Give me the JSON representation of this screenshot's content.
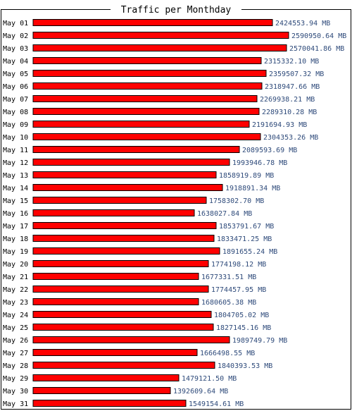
{
  "chart_data": {
    "type": "bar",
    "orientation": "horizontal",
    "title": "Traffic per Monthday",
    "unit": "MB",
    "colors": {
      "bar": "#ff0000",
      "bar_outline": "#000000",
      "value_text": "#2e4a7a",
      "frame": "#000000"
    },
    "categories": [
      "May 01",
      "May 02",
      "May 03",
      "May 04",
      "May 05",
      "May 06",
      "May 07",
      "May 08",
      "May 09",
      "May 10",
      "May 11",
      "May 12",
      "May 13",
      "May 14",
      "May 15",
      "May 16",
      "May 17",
      "May 18",
      "May 19",
      "May 20",
      "May 21",
      "May 22",
      "May 23",
      "May 24",
      "May 25",
      "May 26",
      "May 27",
      "May 28",
      "May 29",
      "May 30",
      "May 31"
    ],
    "values": [
      2424553.94,
      2590950.64,
      2570041.86,
      2315332.1,
      2359507.32,
      2318947.66,
      2269938.21,
      2289310.28,
      2191694.93,
      2304353.26,
      2089593.69,
      1993946.78,
      1858919.89,
      1918891.34,
      1758302.7,
      1638027.84,
      1853791.67,
      1833471.25,
      1891655.24,
      1774198.12,
      1677331.51,
      1774457.95,
      1680605.38,
      1804705.02,
      1827145.16,
      1989749.79,
      1666498.55,
      1840393.53,
      1479121.5,
      1392609.64,
      1549154.61
    ],
    "value_labels": [
      "2424553.94 MB",
      "2590950.64 MB",
      "2570041.86 MB",
      "2315332.10 MB",
      "2359507.32 MB",
      "2318947.66 MB",
      "2269938.21 MB",
      "2289310.28 MB",
      "2191694.93 MB",
      "2304353.26 MB",
      "2089593.69 MB",
      "1993946.78 MB",
      "1858919.89 MB",
      "1918891.34 MB",
      "1758302.70 MB",
      "1638027.84 MB",
      "1853791.67 MB",
      "1833471.25 MB",
      "1891655.24 MB",
      "1774198.12 MB",
      "1677331.51 MB",
      "1774457.95 MB",
      "1680605.38 MB",
      "1804705.02 MB",
      "1827145.16 MB",
      "1989749.79 MB",
      "1666498.55 MB",
      "1840393.53 MB",
      "1479121.50 MB",
      "1392609.64 MB",
      "1549154.61 MB"
    ]
  }
}
